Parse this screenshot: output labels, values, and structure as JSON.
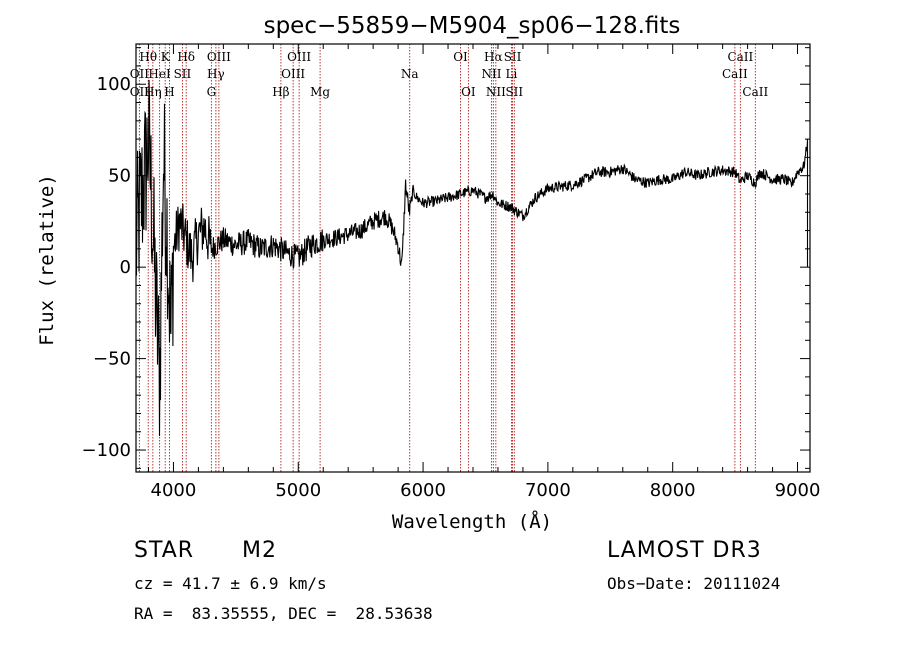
{
  "chart_data": {
    "type": "line",
    "title": "spec−55859−M5904_sp06−128.fits",
    "xlabel": "Wavelength (Å)",
    "ylabel": "Flux (relative)",
    "xlim": [
      3700,
      9100
    ],
    "ylim": [
      -112,
      122
    ],
    "xticks": [
      4000,
      5000,
      6000,
      7000,
      8000,
      9000
    ],
    "xtick_labels": [
      "4000",
      "5000",
      "6000",
      "7000",
      "8000",
      "9000"
    ],
    "yticks": [
      -100,
      -50,
      0,
      50,
      100
    ],
    "ytick_labels": [
      "−100",
      "−50",
      "0",
      "50",
      "100"
    ],
    "spectrum_anchors": {
      "x": [
        3700,
        3720,
        3750,
        3780,
        3800,
        3830,
        3860,
        3890,
        3920,
        3950,
        3980,
        4000,
        4050,
        4100,
        4150,
        4200,
        4250,
        4300,
        4400,
        4500,
        4600,
        4700,
        4800,
        4900,
        5000,
        5100,
        5200,
        5300,
        5400,
        5500,
        5600,
        5700,
        5750,
        5800,
        5830,
        5860,
        5890,
        5920,
        5950,
        6000,
        6100,
        6200,
        6300,
        6400,
        6500,
        6560,
        6600,
        6700,
        6800,
        6900,
        7000,
        7100,
        7200,
        7300,
        7400,
        7500,
        7600,
        7700,
        7800,
        7900,
        8000,
        8100,
        8200,
        8300,
        8400,
        8500,
        8540,
        8600,
        8660,
        8700,
        8800,
        8900,
        8950,
        9000,
        9050,
        9080
      ],
      "y": [
        10,
        25,
        40,
        55,
        70,
        30,
        -20,
        -60,
        60,
        20,
        -40,
        10,
        25,
        15,
        5,
        18,
        22,
        10,
        15,
        12,
        14,
        10,
        12,
        8,
        5,
        12,
        15,
        16,
        18,
        20,
        25,
        28,
        22,
        12,
        0,
        45,
        30,
        42,
        38,
        35,
        36,
        38,
        40,
        42,
        38,
        40,
        35,
        33,
        28,
        38,
        43,
        44,
        45,
        48,
        52,
        52,
        54,
        48,
        46,
        48,
        48,
        52,
        50,
        52,
        53,
        52,
        47,
        50,
        46,
        52,
        48,
        48,
        45,
        52,
        55,
        68
      ]
    },
    "spectral_lines": [
      {
        "label": "Hθ",
        "wavelength": 3798,
        "row": 0
      },
      {
        "label": "K",
        "wavelength": 3934,
        "row": 0
      },
      {
        "label": "Hδ",
        "wavelength": 4102,
        "row": 0
      },
      {
        "label": "OIII",
        "wavelength": 4364,
        "row": 0
      },
      {
        "label": "OIII",
        "wavelength": 5007,
        "row": 0
      },
      {
        "label": "OI",
        "wavelength": 6300,
        "row": 0
      },
      {
        "label": "Hα",
        "wavelength": 6563,
        "row": 0
      },
      {
        "label": "SII",
        "wavelength": 6717,
        "row": 0
      },
      {
        "label": "CaII",
        "wavelength": 8542,
        "row": 0
      },
      {
        "label": "OII",
        "wavelength": 3727,
        "row": 1
      },
      {
        "label": "HeI",
        "wavelength": 3889,
        "row": 1
      },
      {
        "label": "SII",
        "wavelength": 4072,
        "row": 1
      },
      {
        "label": "Hγ",
        "wavelength": 4340,
        "row": 1
      },
      {
        "label": "OIII",
        "wavelength": 4959,
        "row": 1
      },
      {
        "label": "Na",
        "wavelength": 5893,
        "row": 1
      },
      {
        "label": "NII",
        "wavelength": 6548,
        "row": 1
      },
      {
        "label": "Li",
        "wavelength": 6708,
        "row": 1
      },
      {
        "label": "CaII",
        "wavelength": 8498,
        "row": 1
      },
      {
        "label": "OII",
        "wavelength": 3727,
        "row": 2
      },
      {
        "label": "Hη",
        "wavelength": 3835,
        "row": 2
      },
      {
        "label": "H",
        "wavelength": 3968,
        "row": 2
      },
      {
        "label": "G",
        "wavelength": 4304,
        "row": 2
      },
      {
        "label": "Hβ",
        "wavelength": 4861,
        "row": 2
      },
      {
        "label": "Mg",
        "wavelength": 5175,
        "row": 2
      },
      {
        "label": "OI",
        "wavelength": 6363,
        "row": 2
      },
      {
        "label": "NII",
        "wavelength": 6583,
        "row": 2
      },
      {
        "label": "SII",
        "wavelength": 6731,
        "row": 2
      },
      {
        "label": "CaII",
        "wavelength": 8662,
        "row": 2
      }
    ],
    "line_color": "#b22222"
  },
  "info": {
    "class": "STAR",
    "subclass": "M2",
    "survey": "LAMOST DR3",
    "cz": "cz = 41.7 ± 6.9 km/s",
    "obs_date": "Obs−Date: 20111024",
    "coords": "RA =  83.35555, DEC =  28.53638"
  }
}
